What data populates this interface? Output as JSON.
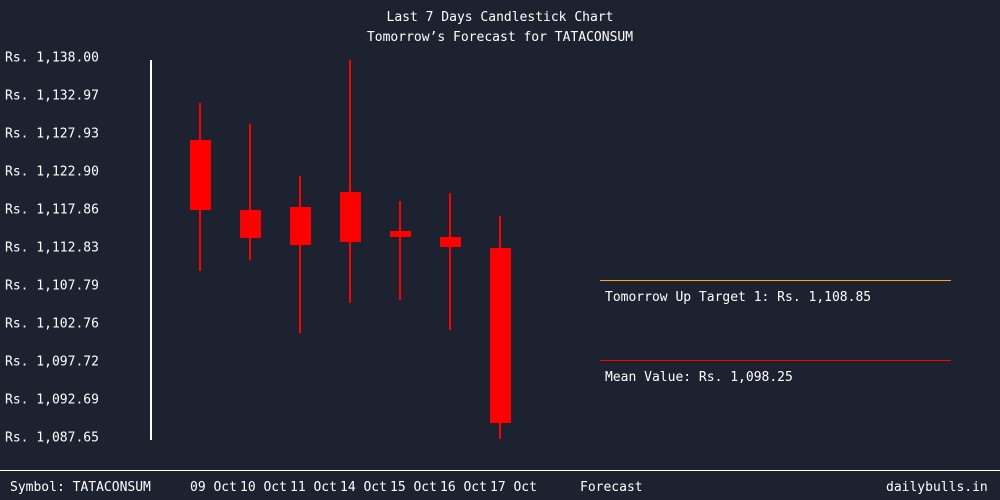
{
  "header": {
    "title": "Last 7 Days Candlestick Chart",
    "subtitle": "Tomorrow’s Forecast for TATACONSUM"
  },
  "yaxis": {
    "labels": [
      "Rs. 1,138.00",
      "Rs. 1,132.97",
      "Rs. 1,127.93",
      "Rs. 1,122.90",
      "Rs. 1,117.86",
      "Rs. 1,112.83",
      "Rs. 1,107.79",
      "Rs. 1,102.76",
      "Rs. 1,097.72",
      "Rs. 1,092.69",
      "Rs. 1,087.65"
    ]
  },
  "forecast": {
    "up_target_label": "Tomorrow Up Target 1: Rs. 1,108.85",
    "up_target_color": "#ffa500",
    "mean_label": "Mean Value: Rs. 1,098.25",
    "mean_color": "#ff0000"
  },
  "footer": {
    "symbol": "Symbol: TATACONSUM",
    "dates": [
      "09 Oct",
      "10 Oct",
      "11 Oct",
      "14 Oct",
      "15 Oct",
      "16 Oct",
      "17 Oct"
    ],
    "forecast_label": "Forecast",
    "brand": "dailybulls.in"
  },
  "colors": {
    "background": "#1c2230",
    "candle": "#ff0000",
    "text": "#ffffff"
  },
  "chart_data": {
    "type": "candlestick",
    "title": "Last 7 Days Candlestick Chart",
    "subtitle": "Tomorrow’s Forecast for TATACONSUM",
    "categories": [
      "09 Oct",
      "10 Oct",
      "11 Oct",
      "14 Oct",
      "15 Oct",
      "16 Oct",
      "17 Oct"
    ],
    "series": [
      {
        "name": "TATACONSUM",
        "ohlc": [
          {
            "date": "09 Oct",
            "open": 1127.1,
            "high": 1132.1,
            "low": 1109.8,
            "close": 1117.8
          },
          {
            "date": "10 Oct",
            "open": 1117.9,
            "high": 1129.2,
            "low": 1111.3,
            "close": 1114.2
          },
          {
            "date": "11 Oct",
            "open": 1118.2,
            "high": 1122.4,
            "low": 1101.6,
            "close": 1113.2
          },
          {
            "date": "14 Oct",
            "open": 1120.2,
            "high": 1137.7,
            "low": 1105.5,
            "close": 1113.6
          },
          {
            "date": "15 Oct",
            "open": 1115.1,
            "high": 1119.0,
            "low": 1106.0,
            "close": 1114.3
          },
          {
            "date": "16 Oct",
            "open": 1114.3,
            "high": 1120.1,
            "low": 1102.0,
            "close": 1112.9
          },
          {
            "date": "17 Oct",
            "open": 1112.8,
            "high": 1117.0,
            "low": 1087.5,
            "close": 1089.6
          }
        ]
      }
    ],
    "annotations": [
      {
        "label": "Tomorrow Up Target 1",
        "value": 1108.85,
        "color": "#ffa500"
      },
      {
        "label": "Mean Value",
        "value": 1098.25,
        "color": "#ff0000"
      }
    ],
    "ylim": [
      1087.65,
      1138.0
    ],
    "yticks": [
      1138.0,
      1132.97,
      1127.93,
      1122.9,
      1117.86,
      1112.83,
      1107.79,
      1102.76,
      1097.72,
      1092.69,
      1087.65
    ],
    "xlabel": "",
    "ylabel": "",
    "grid": false
  }
}
